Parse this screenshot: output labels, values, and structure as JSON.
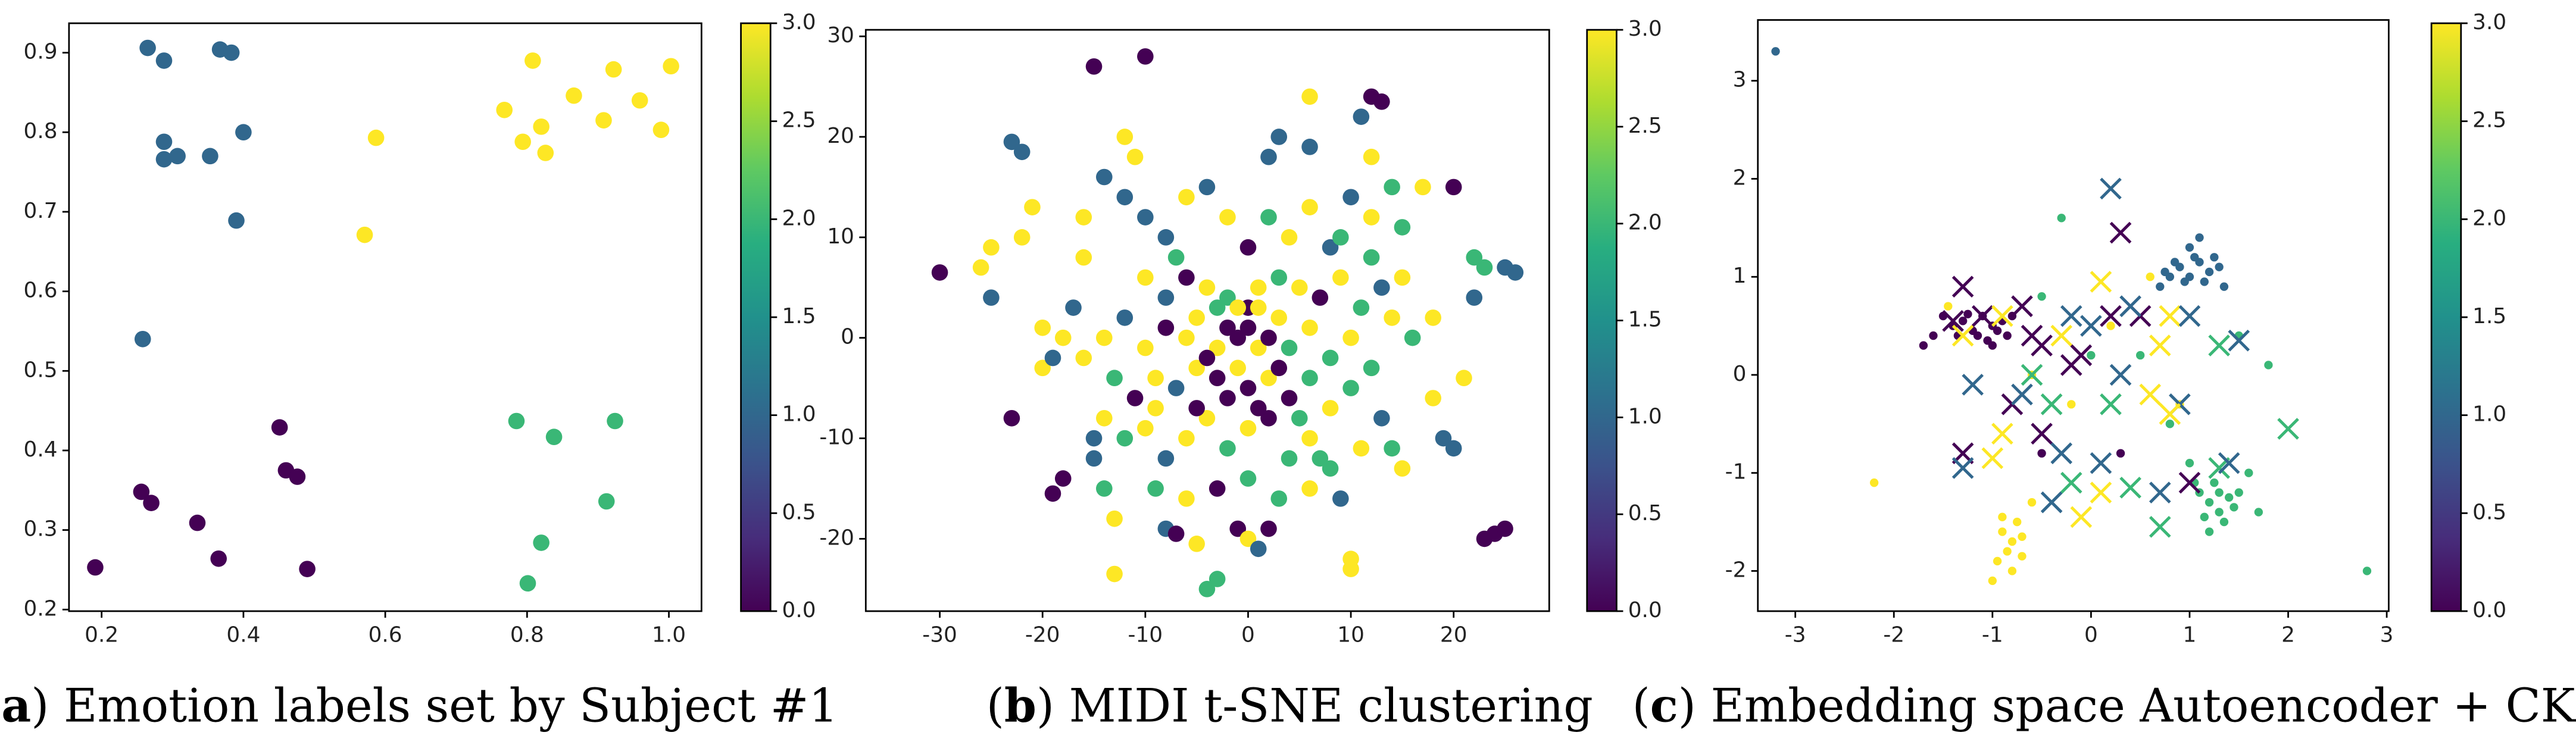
{
  "chart_data": [
    {
      "type": "scatter",
      "colormap": "viridis",
      "caption": {
        "open": "(",
        "label": "a",
        "text": ") Emotion labels set by Subject #1"
      },
      "xlim": [
        0.154,
        1.046
      ],
      "ylim": [
        0.198,
        0.937
      ],
      "xticks": [
        0.2,
        0.4,
        0.6,
        0.8,
        {
          "value": 1,
          "label": "1.0"
        }
      ],
      "yticks": [
        0.2,
        0.3,
        0.4,
        0.5,
        0.6,
        0.7,
        0.8,
        0.9
      ],
      "clim": [
        0,
        3
      ],
      "cticks": [
        {
          "value": 0,
          "label": "0.0"
        },
        0.5,
        {
          "value": 1,
          "label": "1.0"
        },
        1.5,
        {
          "value": 2,
          "label": "2.0"
        },
        2.5,
        {
          "value": 3,
          "label": "3.0"
        }
      ],
      "series": [
        {
          "marker": "o",
          "x": [
            0.265,
            0.288,
            0.367,
            0.383,
            0.288,
            0.288,
            0.307,
            0.353,
            0.4,
            0.39,
            0.258,
            0.191,
            0.256,
            0.27,
            0.335,
            0.365,
            0.451,
            0.46,
            0.476,
            0.49,
            0.571,
            0.587,
            0.768,
            0.808,
            0.794,
            0.82,
            0.826,
            0.866,
            0.908,
            0.922,
            0.959,
            0.989,
            1.003,
            0.785,
            0.838,
            0.924,
            0.82,
            0.912,
            0.801
          ],
          "y": [
            0.906,
            0.89,
            0.904,
            0.9,
            0.788,
            0.766,
            0.77,
            0.77,
            0.8,
            0.689,
            0.54,
            0.253,
            0.348,
            0.334,
            0.309,
            0.264,
            0.429,
            0.375,
            0.367,
            0.251,
            0.671,
            0.793,
            0.828,
            0.89,
            0.788,
            0.807,
            0.774,
            0.846,
            0.815,
            0.879,
            0.84,
            0.803,
            0.883,
            0.437,
            0.417,
            0.437,
            0.284,
            0.336,
            0.233
          ],
          "c": [
            1,
            1,
            1,
            1,
            1,
            1,
            1,
            1,
            1,
            1,
            1,
            0,
            0,
            0,
            0,
            0,
            0,
            0,
            0,
            0,
            3,
            3,
            3,
            3,
            3,
            3,
            3,
            3,
            3,
            3,
            3,
            3,
            3,
            2,
            2,
            2,
            2,
            2,
            2
          ]
        }
      ]
    },
    {
      "type": "scatter",
      "colormap": "viridis",
      "caption": {
        "open": "(",
        "label": "b",
        "text": ") MIDI t-SNE clustering"
      },
      "xlim": [
        -37.2,
        29.3
      ],
      "ylim": [
        -27.2,
        30.65
      ],
      "xticks": [
        -30,
        -20,
        -10,
        0,
        10,
        20
      ],
      "yticks": [
        -20,
        -10,
        0,
        10,
        20,
        30
      ],
      "clim": [
        0,
        3
      ],
      "cticks": [
        {
          "value": 0,
          "label": "0.0"
        },
        0.5,
        {
          "value": 1,
          "label": "1.0"
        },
        1.5,
        {
          "value": 2,
          "label": "2.0"
        },
        2.5,
        {
          "value": 3,
          "label": "3.0"
        }
      ],
      "series": [
        {
          "marker": "o",
          "x": [
            -30,
            -26,
            -25,
            -25,
            -23,
            -22,
            -23,
            -22,
            -21,
            -20,
            -19,
            -18,
            -16,
            -15,
            -15,
            -14,
            -13,
            -13,
            -15,
            -12,
            -11,
            -10,
            -12,
            -10,
            -8,
            -7,
            -5,
            -4,
            -3,
            -1,
            0,
            1,
            2,
            3,
            2,
            6,
            6,
            10,
            10,
            11,
            12,
            13,
            12,
            14,
            15,
            17,
            20,
            22,
            23,
            25,
            26,
            23,
            24,
            25,
            15,
            14,
            18,
            19,
            20,
            21,
            22,
            16,
            18,
            15
          ],
          "y": [
            6.5,
            7,
            9,
            4,
            19.5,
            18.5,
            -8,
            10,
            13,
            -3,
            -15.5,
            -14,
            8,
            -12,
            -10,
            -15,
            -18,
            -23.5,
            27,
            20,
            18,
            28,
            14,
            12,
            -19,
            -19.5,
            -20.5,
            -25,
            -24,
            -19,
            -20,
            -21,
            -19,
            20,
            18,
            19,
            24,
            -23,
            -22,
            22,
            24,
            23.5,
            18,
            15,
            11,
            15,
            15,
            8,
            7,
            7,
            6.5,
            -20,
            -19.5,
            -19,
            -13,
            -11,
            -6,
            -10,
            -11,
            -4,
            4,
            0,
            2,
            6
          ],
          "c": [
            0,
            3,
            3,
            1,
            1,
            1,
            0,
            3,
            3,
            3,
            0,
            0,
            3,
            1,
            1,
            2,
            3,
            3,
            0,
            3,
            3,
            0,
            1,
            1,
            1,
            0,
            3,
            2,
            2,
            0,
            3,
            1,
            0,
            1,
            1,
            1,
            3,
            3,
            3,
            1,
            0,
            0,
            3,
            2,
            2,
            3,
            0,
            2,
            2,
            1,
            1,
            0,
            0,
            0,
            3,
            2,
            3,
            1,
            1,
            3,
            1,
            2,
            3,
            3
          ]
        },
        {
          "marker": "o",
          "x": [
            -8,
            -6,
            -4,
            -2,
            0,
            2,
            4,
            6,
            8,
            10,
            12,
            -10,
            -8,
            -6,
            -4,
            -2,
            0,
            1,
            3,
            5,
            7,
            9,
            11,
            13,
            -12,
            -10,
            -8,
            -6,
            -5,
            -3,
            -2,
            -1,
            0,
            1,
            2,
            3,
            4,
            6,
            8,
            10,
            12,
            -13,
            -11,
            -9,
            -7,
            -5,
            -3,
            -1,
            0,
            2,
            4,
            6,
            8,
            10,
            13,
            -14,
            -12,
            -10,
            -8,
            -6,
            -4,
            -2,
            0,
            2,
            4,
            6,
            8,
            11,
            -9,
            -6,
            -3,
            0,
            3,
            6,
            9,
            -16,
            -17,
            -14,
            -18,
            -19,
            -20,
            14,
            12,
            -16,
            -14,
            -5,
            -4,
            -2,
            1,
            3,
            -1,
            1,
            -3,
            5,
            -7,
            7,
            9,
            -9
          ],
          "y": [
            10,
            14,
            15,
            12,
            9,
            12,
            10,
            13,
            9,
            14,
            8,
            6,
            4,
            6,
            5,
            4,
            3,
            5,
            6,
            5,
            4,
            6,
            3,
            5,
            2,
            -1,
            1,
            0,
            2,
            -1,
            1,
            0,
            1,
            -1,
            0,
            2,
            -1,
            1,
            -2,
            0,
            -3,
            -4,
            -6,
            -4,
            -5,
            -3,
            -4,
            -3,
            -5,
            -4,
            -6,
            -4,
            -7,
            -5,
            -8,
            -8,
            -10,
            -9,
            -12,
            -10,
            -8,
            -11,
            -9,
            -8,
            -12,
            -10,
            -13,
            -11,
            -15,
            -16,
            -15,
            -14,
            -16,
            -15,
            -16,
            -2,
            3,
            0,
            0,
            -2,
            1,
            2,
            12,
            12,
            16,
            -7,
            -2,
            -6,
            -7,
            -3,
            3,
            3,
            3,
            -8,
            8,
            -12,
            10,
            -7
          ],
          "c": [
            1,
            3,
            1,
            3,
            0,
            2,
            3,
            3,
            1,
            1,
            2,
            3,
            1,
            0,
            3,
            2,
            0,
            3,
            2,
            3,
            0,
            3,
            2,
            1,
            1,
            3,
            0,
            3,
            3,
            3,
            0,
            0,
            0,
            3,
            0,
            3,
            2,
            3,
            2,
            3,
            2,
            2,
            0,
            3,
            1,
            3,
            0,
            3,
            0,
            3,
            0,
            2,
            3,
            2,
            1,
            3,
            2,
            3,
            1,
            3,
            3,
            2,
            3,
            0,
            2,
            3,
            2,
            3,
            2,
            3,
            0,
            2,
            2,
            3,
            1,
            3,
            1,
            3,
            3,
            1,
            3,
            3,
            3,
            3,
            1,
            0,
            0,
            0,
            0,
            0,
            3,
            3,
            2,
            2,
            2,
            2,
            2,
            3
          ]
        }
      ]
    },
    {
      "type": "scatter",
      "colormap": "viridis",
      "caption": {
        "open": "(",
        "label": "c",
        "text": ") Embedding space Autoencoder + CKA"
      },
      "xlim": [
        -3.38,
        3.02
      ],
      "ylim": [
        -2.41,
        3.62
      ],
      "xticks": [
        -3,
        -2,
        -1,
        0,
        1,
        2,
        3
      ],
      "yticks": [
        -2,
        -1,
        0,
        1,
        2,
        3
      ],
      "clim": [
        0,
        3
      ],
      "cticks": [
        {
          "value": 0,
          "label": "0.0"
        },
        0.5,
        {
          "value": 1,
          "label": "1.0"
        },
        1.5,
        {
          "value": 2,
          "label": "2.0"
        },
        2.5,
        {
          "value": 3,
          "label": "3.0"
        }
      ],
      "series": [
        {
          "marker": "o",
          "x": [
            -1.4,
            -1.3,
            -1.2,
            -1.1,
            -1.0,
            -0.9,
            -1.15,
            -1.25,
            -1.05,
            -0.95,
            -1.35,
            -1.5,
            -1.6,
            -1.7,
            -1.45,
            -1.0,
            -0.85,
            -0.8,
            0.8,
            0.9,
            1.0,
            1.1,
            1.2,
            0.95,
            1.05,
            0.85,
            1.15,
            1.0,
            1.1,
            0.7,
            1.25,
            0.75,
            1.3,
            1.35,
            1.1,
            1.2,
            1.3,
            1.4,
            1.25,
            1.35,
            1.15,
            1.45,
            1.05,
            1.3,
            1.2,
            1.5,
            1.6,
            1.7,
            2.8,
            1.0,
            -0.9,
            -0.8,
            -0.85,
            -0.75,
            -0.95,
            -0.7,
            -0.8,
            -0.9,
            -1.0,
            -0.7,
            -2.2,
            -0.6,
            -3.2,
            -0.3,
            -0.5,
            0.2,
            0.5,
            -0.2,
            0.8,
            0.3,
            -0.5,
            0.6,
            0.0,
            -0.6,
            1.5,
            1.8,
            0.9
          ],
          "y": [
            0.5,
            0.55,
            0.45,
            0.6,
            0.5,
            0.55,
            0.4,
            0.62,
            0.35,
            0.45,
            0.4,
            0.6,
            0.4,
            0.3,
            0.7,
            0.3,
            0.4,
            0.6,
            1.0,
            1.1,
            1.0,
            1.15,
            1.05,
            0.95,
            1.2,
            1.15,
            0.95,
            1.3,
            1.4,
            0.9,
            1.2,
            1.05,
            1.1,
            0.9,
            -1.2,
            -1.3,
            -1.4,
            -1.25,
            -1.1,
            -1.5,
            -1.45,
            -1.35,
            -1.1,
            -1.2,
            -1.6,
            -1.2,
            -1.0,
            -1.4,
            -2.0,
            -0.9,
            -1.6,
            -1.7,
            -1.8,
            -1.5,
            -1.9,
            -1.65,
            -2.0,
            -1.45,
            -2.1,
            -1.85,
            -1.1,
            -1.3,
            3.3,
            1.6,
            0.8,
            0.5,
            0.2,
            -0.3,
            -0.5,
            -0.8,
            -0.8,
            1.0,
            0.2,
            0.0,
            0.4,
            0.1,
            -0.3
          ],
          "c": [
            0,
            0,
            0,
            0,
            0,
            0,
            0,
            0,
            0,
            0,
            0,
            0,
            0,
            0,
            3,
            0,
            0,
            0,
            1,
            1,
            1,
            1,
            1,
            1,
            1,
            1,
            1,
            1,
            1,
            1,
            1,
            1,
            1,
            1,
            2,
            2,
            2,
            2,
            2,
            2,
            2,
            2,
            2,
            2,
            2,
            2,
            2,
            2,
            2,
            2,
            3,
            3,
            3,
            3,
            3,
            3,
            3,
            3,
            3,
            3,
            3,
            3,
            1,
            2,
            2,
            3,
            2,
            3,
            2,
            0,
            0,
            3,
            2,
            3,
            2,
            2,
            3
          ]
        },
        {
          "marker": "x",
          "x": [
            0.2,
            0.3,
            -1.3,
            -1.4,
            -1.3,
            -1.1,
            -0.9,
            -0.7,
            -1.2,
            -1.3,
            -1.3,
            -1.0,
            -0.9,
            -0.5,
            -0.3,
            -0.2,
            0.0,
            0.2,
            0.5,
            0.8,
            1.0,
            1.3,
            1.5,
            -0.6,
            -0.4,
            -0.1,
            0.3,
            0.6,
            0.9,
            -0.8,
            -0.5,
            -0.2,
            0.1,
            0.4,
            0.7,
            1.0,
            1.3,
            1.4,
            2.0,
            0.7,
            -0.1,
            0.1,
            -0.4,
            -0.3,
            0.2,
            0.7,
            0.8,
            -0.6,
            0.4,
            -0.2,
            0.1,
            -0.7
          ],
          "y": [
            1.9,
            1.45,
            0.9,
            0.55,
            0.4,
            0.6,
            0.6,
            0.7,
            -0.1,
            -0.8,
            -0.95,
            -0.85,
            -0.6,
            0.3,
            0.4,
            0.6,
            0.5,
            0.6,
            0.6,
            0.6,
            0.6,
            0.3,
            0.35,
            0.0,
            -0.3,
            0.2,
            0.0,
            -0.2,
            -0.3,
            -0.3,
            -0.6,
            -1.1,
            -0.9,
            -1.15,
            -1.2,
            -1.1,
            -0.95,
            -0.9,
            -0.55,
            -1.55,
            -1.45,
            -1.2,
            -1.3,
            -0.8,
            -0.3,
            0.3,
            -0.4,
            0.4,
            0.7,
            0.1,
            0.95,
            -0.2
          ],
          "c": [
            1,
            0,
            0,
            0,
            3,
            0,
            3,
            0,
            1,
            0,
            1,
            3,
            3,
            0,
            3,
            1,
            1,
            0,
            0,
            3,
            1,
            2,
            1,
            2,
            2,
            0,
            1,
            3,
            1,
            0,
            0,
            2,
            1,
            2,
            1,
            0,
            2,
            1,
            2,
            2,
            3,
            3,
            1,
            1,
            2,
            3,
            3,
            0,
            1,
            0,
            3,
            1
          ]
        }
      ]
    }
  ]
}
